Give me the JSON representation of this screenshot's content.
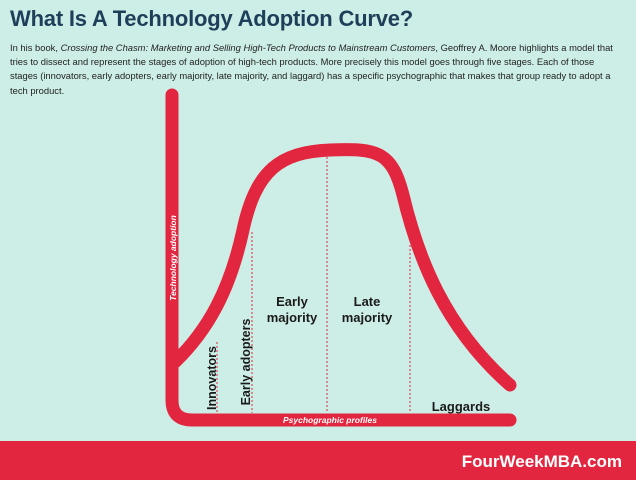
{
  "title": "What Is A Technology Adoption Curve?",
  "intro": {
    "part1": "In his book, ",
    "book_title": "Crossing the Chasm: Marketing and Selling High-Tech Products to Mainstream Customers",
    "part2": ", Geoffrey A. Moore highlights a model that tries to dissect and represent the stages of adoption of high-tech products. More precisely this model goes through five stages. Each of those stages (innovators, early adopters, early majority, late majority, and laggard) has a specific psychographic that makes that group ready to adopt a tech product."
  },
  "diagram": {
    "y_axis_label": "Technology adoption",
    "x_axis_label": "Psychographic profiles",
    "stages": {
      "innovators": "Innovators",
      "early_adopters": "Early adopters",
      "early_majority_line1": "Early",
      "early_majority_line2": "majority",
      "late_majority_line1": "Late",
      "late_majority_line2": "majority",
      "laggards": "Laggards"
    }
  },
  "footer": {
    "brand": "FourWeekMBA.com"
  },
  "colors": {
    "background": "#cdeee6",
    "curve": "#e3263f",
    "title": "#1e3f5a",
    "text": "#1a1a1a"
  }
}
